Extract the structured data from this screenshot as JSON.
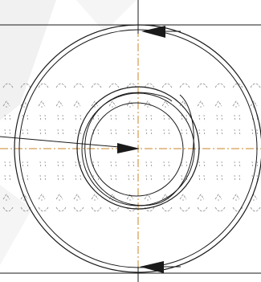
{
  "drawing": {
    "type": "engineering-cross-section",
    "text_labels": [],
    "colors": {
      "background": "#ffffff",
      "outline": "#1a1a1a",
      "centerline": "#c8862a",
      "field_marks": "#8a8a8a",
      "watermark": "#d9d9d9"
    },
    "elements": {
      "outer_circle": "outer-ring",
      "middle_circle": "middle-ring",
      "inner_circles": "inner-spiral-rings",
      "horizontal_axis": "horizontal-centerline",
      "vertical_axis": "vertical-centerline",
      "radius_arrow": "radius-vector-arrow",
      "top_arrow": "top-direction-arrow",
      "bottom_arrow": "bottom-direction-arrow",
      "hatch_band": "magnetic-field-hatch-band"
    }
  }
}
